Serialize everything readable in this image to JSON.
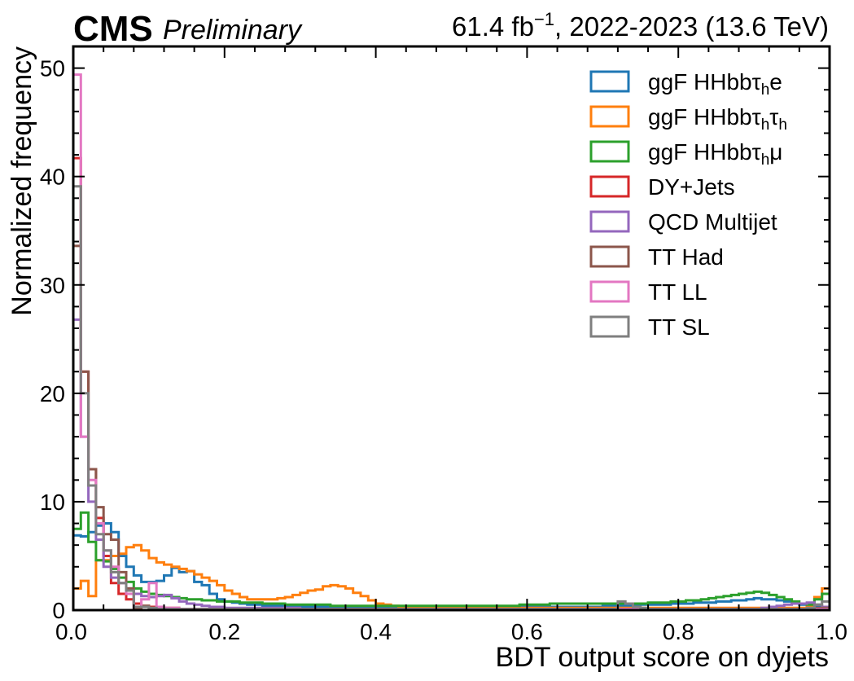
{
  "header": {
    "experiment": "CMS",
    "status": "Preliminary",
    "lumi_value": "61.4 fb",
    "lumi_exp": "−1",
    "lumi_rest": ", 2022-2023 (13.6 TeV)"
  },
  "chart_data": {
    "type": "step-histogram",
    "xlabel": "BDT output score on dyjets",
    "ylabel": "Normalized frequency",
    "xlim": [
      0,
      1
    ],
    "ylim": [
      0,
      52
    ],
    "bin_width": 0.01,
    "x_ticks": [
      "0.0",
      "0.2",
      "0.4",
      "0.6",
      "0.8",
      "1.0"
    ],
    "y_ticks": [
      "0",
      "10",
      "20",
      "30",
      "40",
      "50"
    ],
    "legend_position": "top-right",
    "series": [
      {
        "name": "ggF HHbbτhe",
        "legend": {
          "pre": "ggF HHbbτ",
          "sub": "h",
          "post": "e"
        },
        "color": "#1f77b4",
        "values": [
          6.9,
          6.8,
          7.2,
          7.8,
          8.0,
          7.2,
          5.0,
          4.0,
          3.2,
          2.6,
          2.6,
          2.7,
          3.2,
          3.9,
          3.5,
          3.6,
          2.6,
          2.3,
          1.5,
          1.0,
          0.8,
          0.7,
          0.6,
          0.5,
          0.5,
          0.4,
          0.4,
          0.4,
          0.35,
          0.35,
          0.3,
          0.3,
          0.3,
          0.3,
          0.3,
          0.3,
          0.3,
          0.3,
          0.3,
          0.3,
          0.3,
          0.3,
          0.3,
          0.3,
          0.3,
          0.3,
          0.3,
          0.3,
          0.3,
          0.3,
          0.3,
          0.3,
          0.3,
          0.3,
          0.3,
          0.3,
          0.3,
          0.3,
          0.3,
          0.3,
          0.3,
          0.3,
          0.3,
          0.3,
          0.3,
          0.3,
          0.3,
          0.3,
          0.3,
          0.3,
          0.4,
          0.4,
          0.4,
          0.4,
          0.5,
          0.5,
          0.5,
          0.5,
          0.5,
          0.6,
          0.6,
          0.6,
          0.7,
          0.7,
          0.7,
          0.8,
          0.8,
          0.9,
          0.9,
          1.0,
          1.1,
          1.0,
          1.0,
          0.9,
          0.8,
          0.6,
          0.5,
          0.4,
          0.3,
          0.2
        ]
      },
      {
        "name": "ggF HHbbτhτh",
        "legend": {
          "pre": "ggF HHbbτ",
          "sub": "h",
          "post": "τ",
          "sub2": "h"
        },
        "color": "#ff7f0e",
        "values": [
          2.0,
          2.7,
          1.3,
          4.6,
          4.6,
          5.0,
          5.2,
          5.8,
          6.0,
          5.5,
          4.8,
          4.4,
          4.2,
          4.0,
          3.8,
          3.6,
          3.3,
          3.0,
          2.7,
          2.3,
          1.8,
          1.5,
          1.2,
          1.0,
          1.0,
          1.0,
          1.0,
          1.1,
          1.2,
          1.4,
          1.6,
          1.8,
          1.9,
          2.2,
          2.3,
          2.2,
          2.0,
          1.6,
          1.3,
          0.9,
          0.6,
          0.5,
          0.4,
          0.3,
          0.3,
          0.3,
          0.3,
          0.3,
          0.3,
          0.2,
          0.2,
          0.2,
          0.2,
          0.2,
          0.2,
          0.2,
          0.2,
          0.2,
          0.2,
          0.2,
          0.2,
          0.2,
          0.2,
          0.2,
          0.2,
          0.2,
          0.2,
          0.2,
          0.2,
          0.2,
          0.2,
          0.2,
          0.2,
          0.2,
          0.2,
          0.2,
          0.2,
          0.2,
          0.2,
          0.2,
          0.2,
          0.2,
          0.2,
          0.2,
          0.2,
          0.2,
          0.2,
          0.2,
          0.2,
          0.2,
          0.2,
          0.2,
          0.2,
          0.2,
          0.2,
          0.2,
          0.2,
          0.3,
          1.2,
          2.0
        ]
      },
      {
        "name": "ggF HHbbτhμ",
        "legend": {
          "pre": "ggF HHbbτ",
          "sub": "h",
          "post": "μ"
        },
        "color": "#2ca02c",
        "values": [
          7.5,
          9.0,
          6.3,
          4.6,
          4.5,
          3.8,
          3.0,
          2.6,
          2.0,
          1.7,
          1.5,
          1.4,
          1.3,
          1.2,
          1.1,
          1.0,
          1.0,
          0.9,
          0.9,
          0.8,
          0.8,
          0.8,
          0.7,
          0.7,
          0.7,
          0.6,
          0.6,
          0.6,
          0.5,
          0.5,
          0.5,
          0.5,
          0.5,
          0.5,
          0.4,
          0.4,
          0.4,
          0.4,
          0.4,
          0.4,
          0.4,
          0.4,
          0.4,
          0.4,
          0.4,
          0.4,
          0.4,
          0.4,
          0.4,
          0.4,
          0.4,
          0.4,
          0.4,
          0.4,
          0.4,
          0.4,
          0.4,
          0.4,
          0.4,
          0.5,
          0.5,
          0.5,
          0.5,
          0.6,
          0.6,
          0.6,
          0.6,
          0.6,
          0.6,
          0.6,
          0.6,
          0.6,
          0.6,
          0.6,
          0.6,
          0.6,
          0.7,
          0.7,
          0.7,
          0.8,
          0.8,
          0.9,
          0.9,
          1.0,
          1.1,
          1.2,
          1.3,
          1.4,
          1.5,
          1.6,
          1.7,
          1.6,
          1.4,
          1.2,
          1.0,
          0.8,
          0.6,
          0.5,
          1.0,
          1.5
        ]
      },
      {
        "name": "DY+Jets",
        "color": "#d62728",
        "values": [
          41.7,
          22.0,
          13.0,
          8.5,
          5.0,
          2.5,
          1.5,
          1.0,
          0.6,
          0.4,
          0.3,
          0.2,
          0.2,
          0.2,
          0.1,
          0.1,
          0.1,
          0.1,
          0.1,
          0.1,
          0.1,
          0.1,
          0.1,
          0.1,
          0.1,
          0.1,
          0.1,
          0.1,
          0.1,
          0.1,
          0.1,
          0.1,
          0.1,
          0.1,
          0.1,
          0.1,
          0.1,
          0.1,
          0.1,
          0.1,
          0.1,
          0.1,
          0.1,
          0.1,
          0.1,
          0.1,
          0.1,
          0.1,
          0.1,
          0.1,
          0.1,
          0.1,
          0.1,
          0.1,
          0.1,
          0.1,
          0.1,
          0.1,
          0.1,
          0.1,
          0.1,
          0.1,
          0.1,
          0.1,
          0.1,
          0.1,
          0.1,
          0.1,
          0.1,
          0.1,
          0.1,
          0.1,
          0.1,
          0.1,
          0.1,
          0.1,
          0.1,
          0.1,
          0.1,
          0.1,
          0.1,
          0.1,
          0.1,
          0.1,
          0.1,
          0.1,
          0.1,
          0.1,
          0.1,
          0.1,
          0.1,
          0.1,
          0.1,
          0.1,
          0.1,
          0.1,
          0.1,
          0.1,
          0.1,
          0.1
        ]
      },
      {
        "name": "QCD Multijet",
        "color": "#9467bd",
        "values": [
          26.8,
          16.0,
          10.0,
          6.5,
          4.0,
          3.0,
          2.5,
          2.0,
          1.5,
          1.3,
          1.2,
          1.3,
          1.4,
          1.1,
          0.8,
          0.6,
          0.5,
          0.4,
          0.3,
          0.3,
          0.2,
          0.2,
          0.2,
          0.2,
          0.2,
          0.2,
          0.2,
          0.2,
          0.2,
          0.2,
          0.1,
          0.1,
          0.1,
          0.1,
          0.1,
          0.1,
          0.1,
          0.1,
          0.1,
          0.1,
          0.1,
          0.1,
          0.1,
          0.1,
          0.1,
          0.1,
          0.1,
          0.1,
          0.1,
          0.1,
          0.1,
          0.1,
          0.1,
          0.1,
          0.1,
          0.1,
          0.1,
          0.1,
          0.1,
          0.1,
          0.1,
          0.1,
          0.1,
          0.1,
          0.1,
          0.1,
          0.1,
          0.1,
          0.1,
          0.1,
          0.1,
          0.1,
          0.1,
          0.1,
          0.1,
          0.1,
          0.1,
          0.1,
          0.1,
          0.1,
          0.1,
          0.1,
          0.1,
          0.1,
          0.1,
          0.1,
          0.1,
          0.1,
          0.1,
          0.1,
          0.1,
          0.2,
          0.3,
          0.4,
          0.5,
          0.6,
          0.6,
          0.7,
          0.5,
          0.3
        ]
      },
      {
        "name": "TT Had",
        "color": "#8c564b",
        "values": [
          33.6,
          22.0,
          13.0,
          9.5,
          7.0,
          6.5,
          3.5,
          2.0,
          0.2,
          0.4,
          0.2,
          0.1,
          0.1,
          0.1,
          0.1,
          0.1,
          0.1,
          0.1,
          0.1,
          0.1,
          0.1,
          0.1,
          0.1,
          0.1,
          0.1,
          0.1,
          0.1,
          0.1,
          0.1,
          0.1,
          0.1,
          0.1,
          0.1,
          0.1,
          0.1,
          0.1,
          0.1,
          0.1,
          0.1,
          0.1,
          0.1,
          0.1,
          0.1,
          0.1,
          0.1,
          0.1,
          0.1,
          0.1,
          0.1,
          0.1,
          0.1,
          0.1,
          0.1,
          0.1,
          0.1,
          0.1,
          0.1,
          0.1,
          0.1,
          0.1,
          0.1,
          0.1,
          0.1,
          0.1,
          0.1,
          0.1,
          0.1,
          0.1,
          0.1,
          0.1,
          0.1,
          0.1,
          0.1,
          0.1,
          0.1,
          0.1,
          0.1,
          0.1,
          0.1,
          0.1,
          0.1,
          0.1,
          0.1,
          0.1,
          0.1,
          0.1,
          0.1,
          0.1,
          0.1,
          0.1,
          0.1,
          0.1,
          0.1,
          0.1,
          0.1,
          0.1,
          0.1,
          0.1,
          0.2,
          0.2
        ]
      },
      {
        "name": "TT LL",
        "color": "#e377c2",
        "values": [
          49.4,
          16.0,
          12.0,
          8.0,
          5.5,
          4.0,
          2.5,
          1.5,
          0.3,
          1.0,
          2.5,
          0.3,
          0.2,
          0.2,
          0.1,
          0.1,
          0.1,
          0.1,
          0.1,
          0.1,
          0.1,
          0.1,
          0.1,
          0.1,
          0.1,
          0.1,
          0.1,
          0.1,
          0.1,
          0.1,
          0.1,
          0.1,
          0.1,
          0.1,
          0.1,
          0.1,
          0.1,
          0.1,
          0.1,
          0.1,
          0.1,
          0.1,
          0.1,
          0.1,
          0.1,
          0.1,
          0.1,
          0.1,
          0.1,
          0.1,
          0.1,
          0.1,
          0.1,
          0.1,
          0.1,
          0.1,
          0.1,
          0.1,
          0.1,
          0.1,
          0.1,
          0.1,
          0.1,
          0.1,
          0.1,
          0.1,
          0.1,
          0.1,
          0.1,
          0.1,
          0.1,
          0.1,
          0.1,
          0.1,
          0.1,
          0.1,
          0.1,
          0.1,
          0.1,
          0.1,
          0.1,
          0.1,
          0.1,
          0.1,
          0.1,
          0.1,
          0.1,
          0.1,
          0.1,
          0.1,
          0.1,
          0.1,
          0.1,
          0.1,
          0.1,
          0.1,
          0.1,
          0.1,
          0.1,
          0.1
        ]
      },
      {
        "name": "TT SL",
        "color": "#7f7f7f",
        "values": [
          39.1,
          20.0,
          11.5,
          7.0,
          5.5,
          3.5,
          2.5,
          1.8,
          0.3,
          0.3,
          0.2,
          0.1,
          0.1,
          0.1,
          0.1,
          0.1,
          0.1,
          0.1,
          0.1,
          0.1,
          0.1,
          0.1,
          0.1,
          0.1,
          0.1,
          0.1,
          0.1,
          0.1,
          0.1,
          0.1,
          0.1,
          0.1,
          0.1,
          0.1,
          0.1,
          0.1,
          0.1,
          0.1,
          0.1,
          0.1,
          0.1,
          0.1,
          0.1,
          0.1,
          0.1,
          0.1,
          0.1,
          0.1,
          0.1,
          0.1,
          0.1,
          0.1,
          0.1,
          0.1,
          0.1,
          0.1,
          0.1,
          0.1,
          0.1,
          0.1,
          0.1,
          0.1,
          0.1,
          0.1,
          0.1,
          0.1,
          0.1,
          0.1,
          0.1,
          0.1,
          0.1,
          0.1,
          0.8,
          0.6,
          0.3,
          0.2,
          0.1,
          0.1,
          0.1,
          0.1,
          0.1,
          0.1,
          0.1,
          0.1,
          0.1,
          0.1,
          0.1,
          0.1,
          0.1,
          0.1,
          0.1,
          0.1,
          0.1,
          0.1,
          0.1,
          0.1,
          0.1,
          0.2,
          0.5,
          0.8
        ]
      }
    ]
  }
}
